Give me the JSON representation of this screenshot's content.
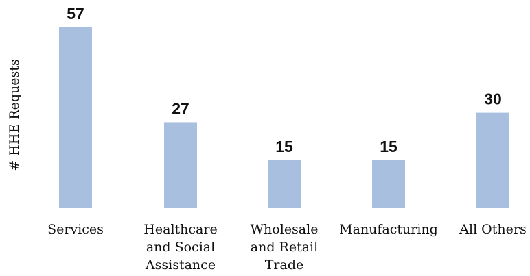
{
  "chart_data": {
    "type": "bar",
    "title": "",
    "xlabel": "",
    "ylabel": "# HHE Requests",
    "categories": [
      [
        "Services"
      ],
      [
        "Healthcare",
        "and Social",
        "Assistance"
      ],
      [
        "Wholesale",
        "and Retail",
        "Trade"
      ],
      [
        "Manufacturing"
      ],
      [
        "All Others"
      ]
    ],
    "values": [
      57,
      27,
      15,
      15,
      30
    ],
    "ylim": [
      0,
      57
    ],
    "grid": false,
    "legend": "none",
    "bar_color": "#a9bfdf"
  }
}
